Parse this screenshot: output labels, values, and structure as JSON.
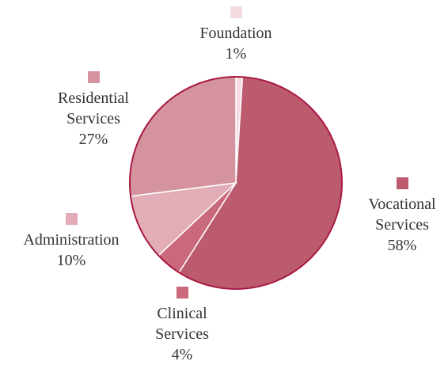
{
  "chart_data": {
    "type": "pie",
    "categories": [
      "Foundation",
      "Vocational Services",
      "Clinical Services",
      "Administration",
      "Residential Services"
    ],
    "values": [
      1,
      58,
      4,
      10,
      27
    ],
    "value_labels": [
      "1%",
      "58%",
      "4%",
      "10%",
      "27%"
    ],
    "colors": [
      "#f3dbe0",
      "#bc5b6e",
      "#c9697b",
      "#e2adb7",
      "#d4939f"
    ]
  }
}
